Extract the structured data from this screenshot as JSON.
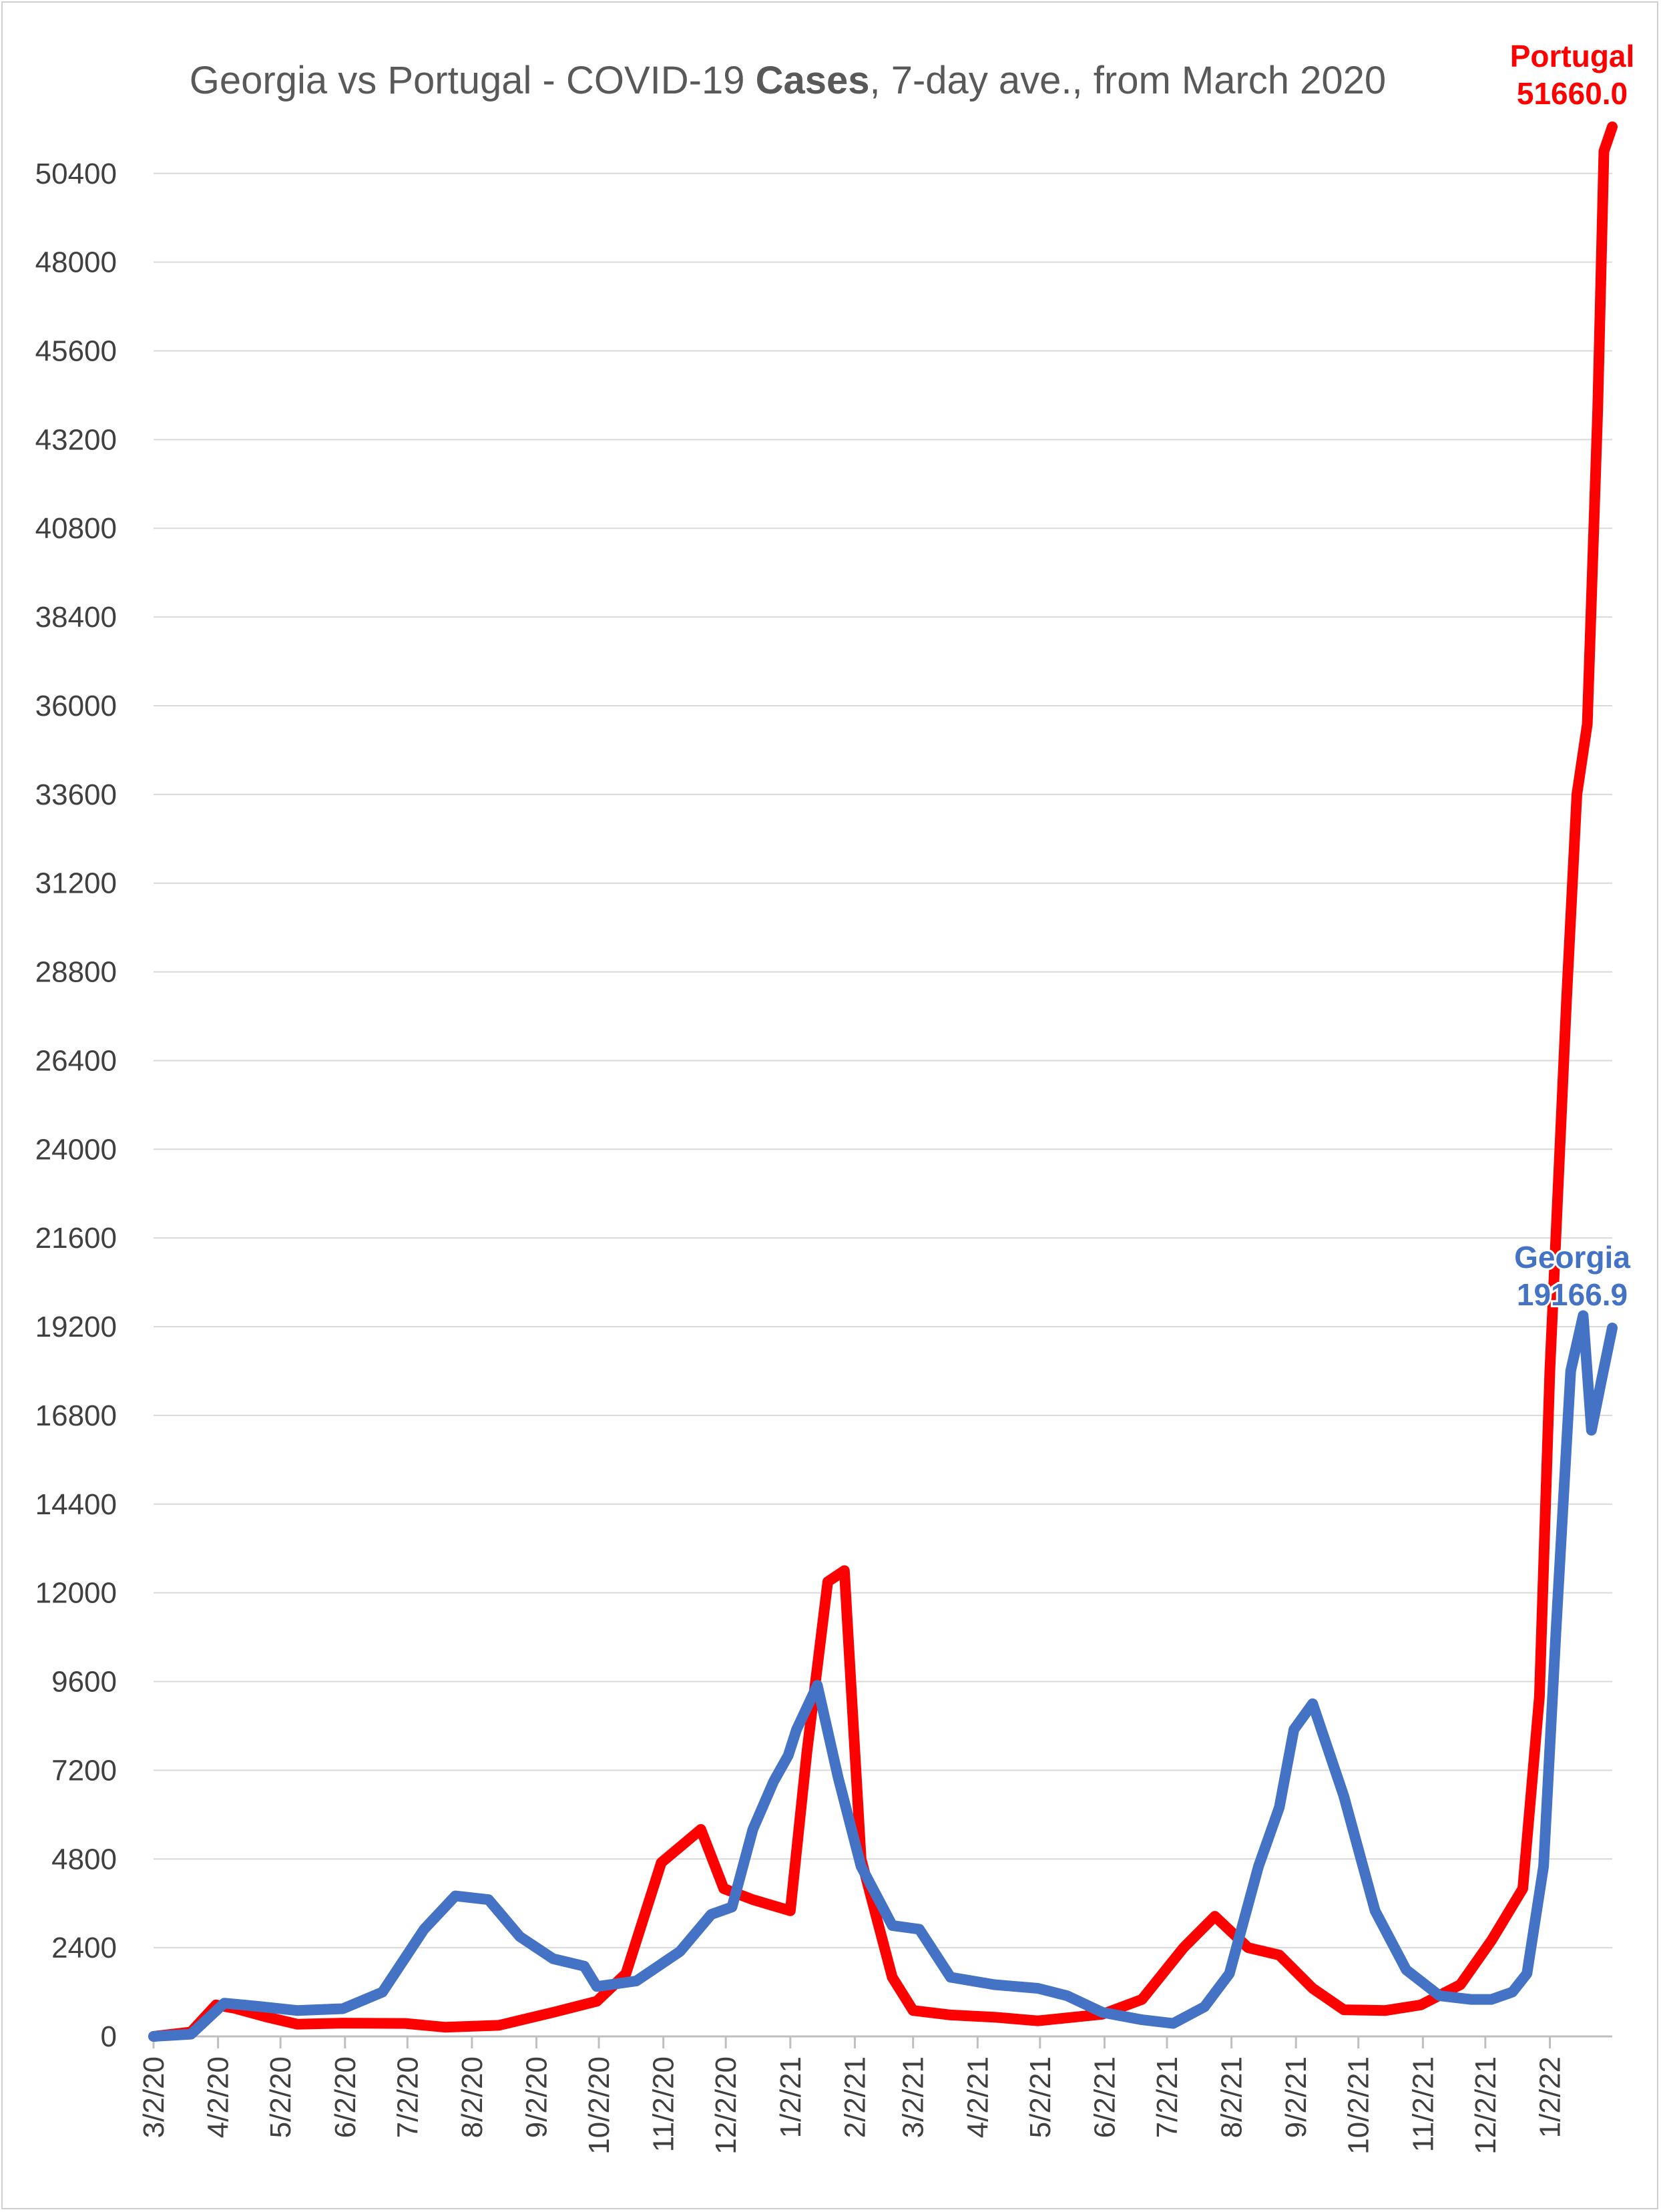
{
  "chart_data": {
    "type": "line",
    "title_parts": [
      {
        "text": "Georgia vs Portugal - COVID-19 ",
        "bold": false
      },
      {
        "text": "Cases",
        "bold": true
      },
      {
        "text": ", 7-day ave., from March 2020",
        "bold": false
      }
    ],
    "xlabel": "",
    "ylabel": "",
    "ylim": [
      0,
      51660
    ],
    "yticks": [
      0,
      2400,
      4800,
      7200,
      9600,
      12000,
      14400,
      16800,
      19200,
      21600,
      24000,
      26400,
      28800,
      31200,
      33600,
      36000,
      38400,
      40800,
      43200,
      45600,
      48000,
      50400
    ],
    "ytick_labels": [
      "0",
      "2400",
      "4800",
      "7200",
      "9600",
      "12000",
      "14400",
      "16800",
      "19200",
      "21600",
      "24000",
      "26400",
      "28800",
      "31200",
      "33600",
      "36000",
      "38400",
      "40800",
      "43200",
      "45600",
      "48000",
      "50400"
    ],
    "xlim": [
      "3/2/20",
      "2/1/22"
    ],
    "x_axis_type": "date",
    "xtick_labels": [
      "3/2/20",
      "4/2/20",
      "5/2/20",
      "6/2/20",
      "7/2/20",
      "8/2/20",
      "9/2/20",
      "10/2/20",
      "11/2/20",
      "12/2/20",
      "1/2/21",
      "2/2/21",
      "3/2/21",
      "4/2/21",
      "5/2/21",
      "6/2/21",
      "7/2/21",
      "8/2/21",
      "9/2/21",
      "10/2/21",
      "11/2/21",
      "12/2/21",
      "1/2/22"
    ],
    "grid": true,
    "series": [
      {
        "name": "Portugal",
        "color": "#ff0000",
        "kind": "7-day average",
        "x": [
          "3/2/20",
          "3/20/20",
          "4/1/20",
          "4/10/20",
          "4/25/20",
          "5/10/20",
          "6/1/20",
          "7/1/20",
          "7/20/20",
          "8/15/20",
          "9/10/20",
          "10/1/20",
          "10/15/20",
          "11/1/20",
          "11/20/20",
          "12/1/20",
          "12/15/20",
          "1/2/21",
          "1/10/21",
          "1/20/21",
          "1/28/21",
          "2/5/21",
          "2/20/21",
          "3/2/21",
          "3/20/21",
          "4/10/21",
          "5/1/21",
          "6/1/21",
          "6/20/21",
          "7/10/21",
          "7/25/21",
          "8/10/21",
          "8/25/21",
          "9/10/21",
          "9/25/21",
          "10/15/21",
          "11/1/21",
          "11/20/21",
          "12/5/21",
          "12/20/21",
          "12/28/21",
          "1/2/22",
          "1/10/22",
          "1/15/22",
          "1/20/22",
          "1/25/22",
          "1/28/22",
          "2/1/22"
        ],
        "y": [
          0,
          120,
          850,
          760,
          530,
          330,
          360,
          350,
          250,
          300,
          650,
          950,
          1700,
          4700,
          5600,
          4000,
          3700,
          3400,
          7700,
          12300,
          12600,
          4800,
          1600,
          700,
          580,
          520,
          420,
          600,
          1000,
          2400,
          3250,
          2400,
          2200,
          1300,
          720,
          700,
          850,
          1400,
          2600,
          4000,
          9200,
          18000,
          28000,
          33600,
          35500,
          44000,
          51000,
          51660
        ]
      },
      {
        "name": "Georgia",
        "color": "#4472c4",
        "kind": "7-day average",
        "x": [
          "3/2/20",
          "3/20/20",
          "4/5/20",
          "4/20/20",
          "5/10/20",
          "6/1/20",
          "6/20/20",
          "7/10/20",
          "7/25/20",
          "8/10/20",
          "8/25/20",
          "9/10/20",
          "9/25/20",
          "10/1/20",
          "10/20/20",
          "11/10/20",
          "11/25/20",
          "12/5/20",
          "12/15/20",
          "12/25/20",
          "1/1/21",
          "1/5/21",
          "1/15/21",
          "1/25/21",
          "2/5/21",
          "2/20/21",
          "3/5/21",
          "3/20/21",
          "4/10/21",
          "5/1/21",
          "5/15/21",
          "6/1/21",
          "6/20/21",
          "7/5/21",
          "7/20/21",
          "8/1/21",
          "8/15/21",
          "8/25/21",
          "9/1/21",
          "9/10/21",
          "9/25/21",
          "10/10/21",
          "10/25/21",
          "11/10/21",
          "11/25/21",
          "12/5/21",
          "12/15/21",
          "12/22/21",
          "12/30/21",
          "1/5/22",
          "1/12/22",
          "1/18/22",
          "1/22/22",
          "1/27/22",
          "2/1/22"
        ],
        "y": [
          0,
          60,
          900,
          820,
          700,
          750,
          1200,
          2900,
          3800,
          3700,
          2700,
          2100,
          1900,
          1350,
          1500,
          2300,
          3300,
          3500,
          5600,
          6900,
          7600,
          8300,
          9500,
          7000,
          4600,
          3000,
          2900,
          1600,
          1400,
          1300,
          1100,
          650,
          450,
          350,
          800,
          1700,
          4600,
          6200,
          8300,
          9000,
          6500,
          3400,
          1800,
          1100,
          1000,
          1000,
          1200,
          1700,
          4600,
          11000,
          18000,
          19500,
          16400,
          17800,
          19166.9
        ]
      }
    ],
    "annotations": [
      {
        "series": "Portugal",
        "label": "Portugal",
        "value_label": "51660.0"
      },
      {
        "series": "Georgia",
        "label": "Georgia",
        "value_label": "19166.9"
      }
    ]
  }
}
